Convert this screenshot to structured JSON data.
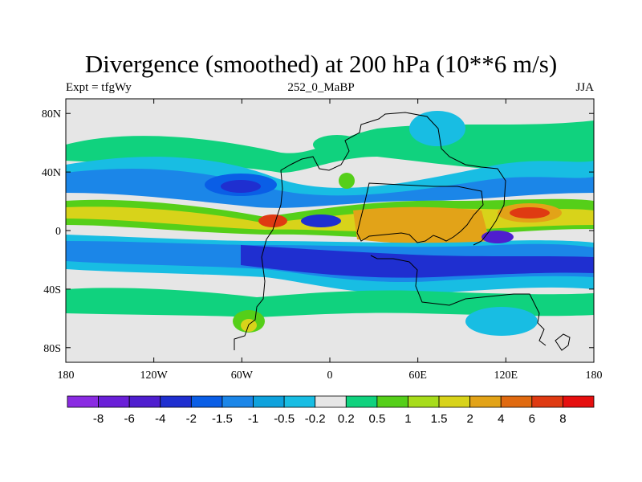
{
  "chart_data": {
    "type": "heatmap",
    "title": "Divergence (smoothed) at 200 hPa (10**6 m/s)",
    "left_label": "Expt = tfgWy",
    "center_label": "252_0_MaBP",
    "right_label": "JJA",
    "x_ticks": [
      "180",
      "120W",
      "60W",
      "0",
      "60E",
      "120E",
      "180"
    ],
    "y_ticks": [
      "80N",
      "40N",
      "0",
      "40S",
      "80S"
    ],
    "xlim": [
      -180,
      180
    ],
    "ylim": [
      -90,
      90
    ],
    "colorbar": {
      "labels": [
        "-8",
        "-6",
        "-4",
        "-2",
        "-1.5",
        "-1",
        "-0.5",
        "-0.2",
        "0.2",
        "0.5",
        "1",
        "1.5",
        "2",
        "4",
        "6",
        "8"
      ],
      "colors": [
        "#8a2be2",
        "#6a1fd8",
        "#4f1ecf",
        "#1f2fd0",
        "#0a5ee6",
        "#1b86e8",
        "#0ea2dd",
        "#18bde3",
        "#e6e6e6",
        "#10d27e",
        "#55cf19",
        "#a7dc1b",
        "#d8d31a",
        "#e2a318",
        "#e06a10",
        "#df3a12",
        "#e60f0f"
      ]
    }
  }
}
